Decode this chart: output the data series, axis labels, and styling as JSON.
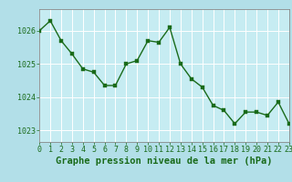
{
  "x": [
    0,
    1,
    2,
    3,
    4,
    5,
    6,
    7,
    8,
    9,
    10,
    11,
    12,
    13,
    14,
    15,
    16,
    17,
    18,
    19,
    20,
    21,
    22,
    23
  ],
  "y": [
    1026.0,
    1026.3,
    1025.7,
    1025.3,
    1024.85,
    1024.75,
    1024.35,
    1024.35,
    1025.0,
    1025.1,
    1025.7,
    1025.65,
    1026.1,
    1025.0,
    1024.55,
    1024.3,
    1023.75,
    1023.6,
    1023.2,
    1023.55,
    1023.55,
    1023.45,
    1023.85,
    1023.2
  ],
  "line_color": "#1a6b1a",
  "marker_color": "#1a6b1a",
  "outer_bg_color": "#b2dfe8",
  "plot_bg_color": "#c6ecf2",
  "grid_color": "#d0eef4",
  "axis_border_color": "#888888",
  "title": "Graphe pression niveau de la mer (hPa)",
  "title_color": "#1a6b1a",
  "title_fontsize": 7.5,
  "tick_color": "#1a6b1a",
  "tick_fontsize": 6,
  "yticks": [
    1023,
    1024,
    1025,
    1026
  ],
  "xticks": [
    0,
    1,
    2,
    3,
    4,
    5,
    6,
    7,
    8,
    9,
    10,
    11,
    12,
    13,
    14,
    15,
    16,
    17,
    18,
    19,
    20,
    21,
    22,
    23
  ],
  "xlim": [
    0,
    23
  ],
  "ylim": [
    1022.65,
    1026.65
  ],
  "linewidth": 1.0,
  "markersize": 2.5,
  "marker": "s"
}
